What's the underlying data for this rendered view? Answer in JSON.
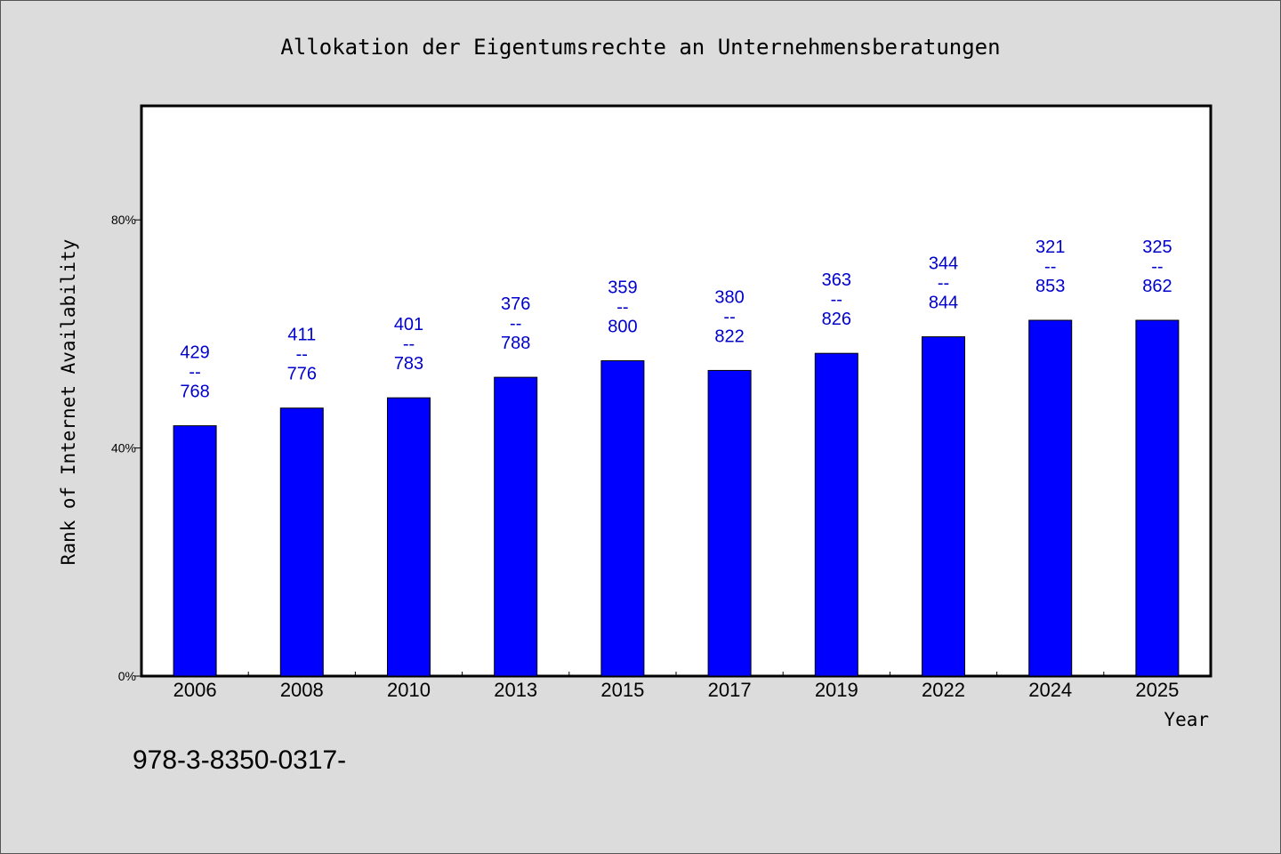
{
  "chart_data": {
    "type": "bar",
    "title": "Allokation der Eigentumsrechte an Unternehmensberatungen",
    "xlabel": "Year",
    "ylabel": "Rank of Internet Availability",
    "categories": [
      "2006",
      "2008",
      "2010",
      "2013",
      "2015",
      "2017",
      "2019",
      "2022",
      "2024",
      "2025"
    ],
    "values": [
      43.9,
      47.0,
      48.8,
      52.4,
      55.3,
      53.6,
      56.6,
      59.5,
      62.4,
      62.4
    ],
    "data_labels": [
      [
        "429",
        "--",
        "768"
      ],
      [
        "411",
        "--",
        "776"
      ],
      [
        "401",
        "--",
        "783"
      ],
      [
        "376",
        "--",
        "788"
      ],
      [
        "359",
        "--",
        "800"
      ],
      [
        "380",
        "--",
        "822"
      ],
      [
        "363",
        "--",
        "826"
      ],
      [
        "344",
        "--",
        "844"
      ],
      [
        "321",
        "--",
        "853"
      ],
      [
        "325",
        "--",
        "862"
      ]
    ],
    "ylim": [
      0,
      100
    ],
    "yticks": [
      "0%",
      "40%",
      "80%"
    ],
    "ytick_values": [
      0,
      40,
      80
    ],
    "grid": false,
    "legend": "none",
    "bar_color": "#0000ff",
    "label_color": "#0000cc"
  },
  "footnote": "978-3-8350-0317-"
}
